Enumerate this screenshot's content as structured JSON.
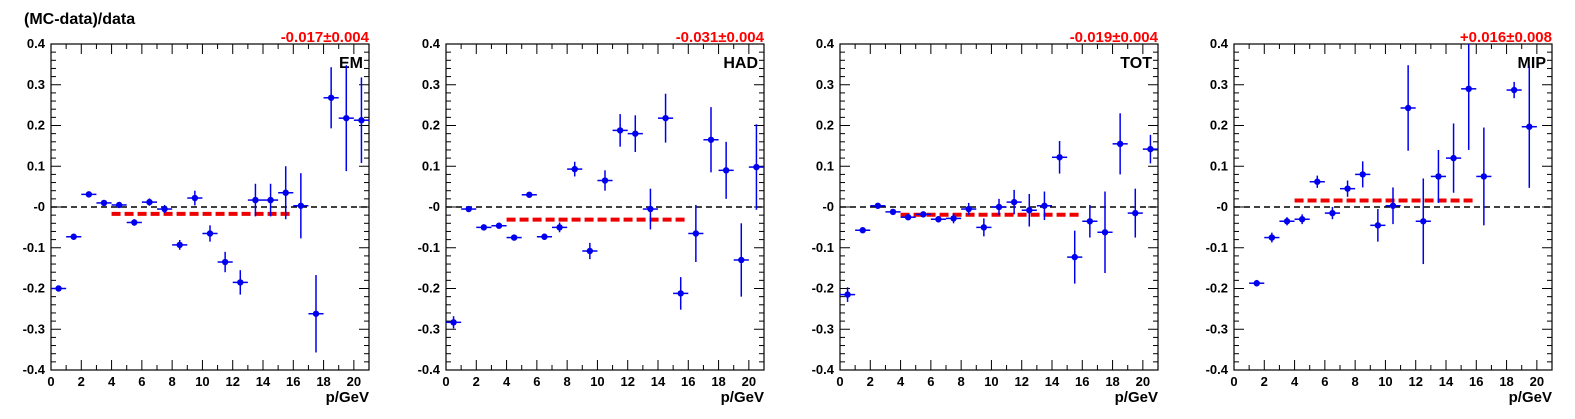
{
  "figure": {
    "ylabel": "(MC-data)/data"
  },
  "colors": {
    "points": "#0000ee",
    "fit": "#ee0000",
    "zero_line": "#000000"
  },
  "chart_data": [
    {
      "type": "scatter",
      "panel_label": "EM",
      "fit_label": "-0.017±0.004",
      "fit": {
        "value": -0.017,
        "x_range": [
          4,
          16
        ]
      },
      "xlabel": "p/GeV",
      "xlim": [
        0,
        21
      ],
      "ylim": [
        -0.4,
        0.4
      ],
      "xticks": [
        "0",
        "2",
        "4",
        "6",
        "8",
        "10",
        "12",
        "14",
        "16",
        "18",
        "20"
      ],
      "yticks": [
        "-0.4",
        "-0.3",
        "-0.2",
        "-0.1",
        "-0",
        "0.1",
        "0.2",
        "0.3",
        "0.4"
      ],
      "reference_line": 0,
      "points": [
        {
          "x": 0.5,
          "y": -0.2,
          "yerr": 0.005
        },
        {
          "x": 1.5,
          "y": -0.073,
          "yerr": 0.005
        },
        {
          "x": 2.5,
          "y": 0.031,
          "yerr": 0.006
        },
        {
          "x": 3.5,
          "y": 0.01,
          "yerr": 0.007
        },
        {
          "x": 4.5,
          "y": 0.005,
          "yerr": 0.007
        },
        {
          "x": 5.5,
          "y": -0.038,
          "yerr": 0.008
        },
        {
          "x": 6.5,
          "y": 0.012,
          "yerr": 0.009
        },
        {
          "x": 7.5,
          "y": -0.005,
          "yerr": 0.01
        },
        {
          "x": 8.5,
          "y": -0.093,
          "yerr": 0.012
        },
        {
          "x": 9.5,
          "y": 0.022,
          "yerr": 0.018
        },
        {
          "x": 10.5,
          "y": -0.065,
          "yerr": 0.02
        },
        {
          "x": 11.5,
          "y": -0.135,
          "yerr": 0.025
        },
        {
          "x": 12.5,
          "y": -0.185,
          "yerr": 0.03
        },
        {
          "x": 13.5,
          "y": 0.017,
          "yerr": 0.04
        },
        {
          "x": 14.5,
          "y": 0.017,
          "yerr": 0.04
        },
        {
          "x": 15.5,
          "y": 0.035,
          "yerr": 0.065
        },
        {
          "x": 16.5,
          "y": 0.003,
          "yerr": 0.08
        },
        {
          "x": 17.5,
          "y": -0.262,
          "yerr": 0.095
        },
        {
          "x": 18.5,
          "y": 0.268,
          "yerr": 0.075
        },
        {
          "x": 19.5,
          "y": 0.218,
          "yerr": 0.13
        },
        {
          "x": 20.5,
          "y": 0.213,
          "yerr": 0.105
        }
      ]
    },
    {
      "type": "scatter",
      "panel_label": "HAD",
      "fit_label": "-0.031±0.004",
      "fit": {
        "value": -0.031,
        "x_range": [
          4,
          16
        ]
      },
      "xlabel": "p/GeV",
      "xlim": [
        0,
        21
      ],
      "ylim": [
        -0.4,
        0.4
      ],
      "xticks": [
        "0",
        "2",
        "4",
        "6",
        "8",
        "10",
        "12",
        "14",
        "16",
        "18",
        "20"
      ],
      "yticks": [
        "-0.4",
        "-0.3",
        "-0.2",
        "-0.1",
        "-0",
        "0.1",
        "0.2",
        "0.3",
        "0.4"
      ],
      "reference_line": 0,
      "points": [
        {
          "x": 0.5,
          "y": -0.283,
          "yerr": 0.015
        },
        {
          "x": 1.5,
          "y": -0.005,
          "yerr": 0.005
        },
        {
          "x": 2.5,
          "y": -0.05,
          "yerr": 0.006
        },
        {
          "x": 3.5,
          "y": -0.046,
          "yerr": 0.007
        },
        {
          "x": 4.5,
          "y": -0.075,
          "yerr": 0.007
        },
        {
          "x": 5.5,
          "y": 0.03,
          "yerr": 0.007
        },
        {
          "x": 6.5,
          "y": -0.073,
          "yerr": 0.008
        },
        {
          "x": 7.5,
          "y": -0.05,
          "yerr": 0.012
        },
        {
          "x": 8.5,
          "y": 0.093,
          "yerr": 0.018
        },
        {
          "x": 9.5,
          "y": -0.108,
          "yerr": 0.02
        },
        {
          "x": 10.5,
          "y": 0.065,
          "yerr": 0.025
        },
        {
          "x": 11.5,
          "y": 0.188,
          "yerr": 0.04
        },
        {
          "x": 12.5,
          "y": 0.18,
          "yerr": 0.045
        },
        {
          "x": 13.5,
          "y": -0.005,
          "yerr": 0.05
        },
        {
          "x": 14.5,
          "y": 0.218,
          "yerr": 0.06
        },
        {
          "x": 15.5,
          "y": -0.212,
          "yerr": 0.04
        },
        {
          "x": 16.5,
          "y": -0.065,
          "yerr": 0.07
        },
        {
          "x": 17.5,
          "y": 0.165,
          "yerr": 0.08
        },
        {
          "x": 18.5,
          "y": 0.09,
          "yerr": 0.07
        },
        {
          "x": 19.5,
          "y": -0.13,
          "yerr": 0.09
        },
        {
          "x": 20.5,
          "y": 0.098,
          "yerr": 0.105
        }
      ]
    },
    {
      "type": "scatter",
      "panel_label": "TOT",
      "fit_label": "-0.019±0.004",
      "fit": {
        "value": -0.019,
        "x_range": [
          4,
          16
        ]
      },
      "xlabel": "p/GeV",
      "xlim": [
        0,
        21
      ],
      "ylim": [
        -0.4,
        0.4
      ],
      "xticks": [
        "0",
        "2",
        "4",
        "6",
        "8",
        "10",
        "12",
        "14",
        "16",
        "18",
        "20"
      ],
      "yticks": [
        "-0.4",
        "-0.3",
        "-0.2",
        "-0.1",
        "-0",
        "0.1",
        "0.2",
        "0.3",
        "0.4"
      ],
      "reference_line": 0,
      "points": [
        {
          "x": 0.5,
          "y": -0.215,
          "yerr": 0.018
        },
        {
          "x": 1.5,
          "y": -0.057,
          "yerr": 0.006
        },
        {
          "x": 2.5,
          "y": 0.003,
          "yerr": 0.007
        },
        {
          "x": 3.5,
          "y": -0.012,
          "yerr": 0.007
        },
        {
          "x": 4.5,
          "y": -0.025,
          "yerr": 0.007
        },
        {
          "x": 5.5,
          "y": -0.018,
          "yerr": 0.007
        },
        {
          "x": 6.5,
          "y": -0.03,
          "yerr": 0.008
        },
        {
          "x": 7.5,
          "y": -0.028,
          "yerr": 0.012
        },
        {
          "x": 8.5,
          "y": -0.005,
          "yerr": 0.015
        },
        {
          "x": 9.5,
          "y": -0.05,
          "yerr": 0.022
        },
        {
          "x": 10.5,
          "y": 0.0,
          "yerr": 0.02
        },
        {
          "x": 11.5,
          "y": 0.012,
          "yerr": 0.03
        },
        {
          "x": 12.5,
          "y": -0.008,
          "yerr": 0.04
        },
        {
          "x": 13.5,
          "y": 0.003,
          "yerr": 0.035
        },
        {
          "x": 14.5,
          "y": 0.122,
          "yerr": 0.04
        },
        {
          "x": 15.5,
          "y": -0.123,
          "yerr": 0.065
        },
        {
          "x": 16.5,
          "y": -0.035,
          "yerr": 0.04
        },
        {
          "x": 17.5,
          "y": -0.062,
          "yerr": 0.1
        },
        {
          "x": 18.5,
          "y": 0.155,
          "yerr": 0.075
        },
        {
          "x": 19.5,
          "y": -0.015,
          "yerr": 0.06
        },
        {
          "x": 20.5,
          "y": 0.142,
          "yerr": 0.035
        }
      ]
    },
    {
      "type": "scatter",
      "panel_label": "MIP",
      "fit_label": "+0.016±0.008",
      "fit": {
        "value": 0.016,
        "x_range": [
          4,
          16
        ]
      },
      "xlabel": "p/GeV",
      "xlim": [
        0,
        21
      ],
      "ylim": [
        -0.4,
        0.4
      ],
      "xticks": [
        "0",
        "2",
        "4",
        "6",
        "8",
        "10",
        "12",
        "14",
        "16",
        "18",
        "20"
      ],
      "yticks": [
        "-0.4",
        "-0.3",
        "-0.2",
        "-0.1",
        "-0",
        "0.1",
        "0.2",
        "0.3",
        "0.4"
      ],
      "reference_line": 0,
      "points": [
        {
          "x": 1.5,
          "y": -0.187,
          "yerr": 0.008
        },
        {
          "x": 2.5,
          "y": -0.075,
          "yerr": 0.012
        },
        {
          "x": 3.5,
          "y": -0.035,
          "yerr": 0.01
        },
        {
          "x": 4.5,
          "y": -0.03,
          "yerr": 0.012
        },
        {
          "x": 5.5,
          "y": 0.062,
          "yerr": 0.015
        },
        {
          "x": 6.5,
          "y": -0.015,
          "yerr": 0.015
        },
        {
          "x": 7.5,
          "y": 0.045,
          "yerr": 0.02
        },
        {
          "x": 8.5,
          "y": 0.08,
          "yerr": 0.032
        },
        {
          "x": 9.5,
          "y": -0.045,
          "yerr": 0.04
        },
        {
          "x": 10.5,
          "y": 0.003,
          "yerr": 0.045
        },
        {
          "x": 11.5,
          "y": 0.243,
          "yerr": 0.105
        },
        {
          "x": 12.5,
          "y": -0.035,
          "yerr": 0.105
        },
        {
          "x": 13.5,
          "y": 0.075,
          "yerr": 0.065
        },
        {
          "x": 14.5,
          "y": 0.12,
          "yerr": 0.085
        },
        {
          "x": 15.5,
          "y": 0.29,
          "yerr": 0.15
        },
        {
          "x": 16.5,
          "y": 0.075,
          "yerr": 0.12
        },
        {
          "x": 18.5,
          "y": 0.287,
          "yerr": 0.02
        },
        {
          "x": 19.5,
          "y": 0.197,
          "yerr": 0.15
        }
      ]
    }
  ]
}
